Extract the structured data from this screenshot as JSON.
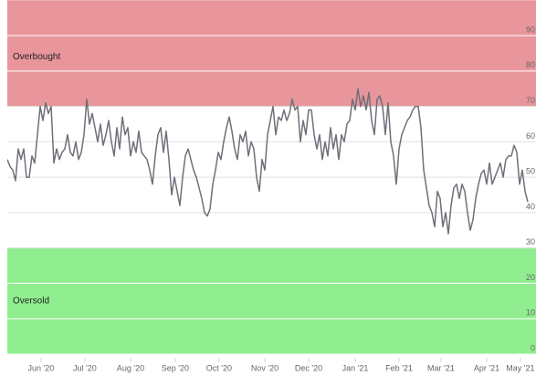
{
  "chart_data": {
    "type": "line",
    "series": [
      {
        "color": "#6e7079",
        "values": [
          55,
          53,
          52,
          49,
          58,
          55,
          58,
          50,
          50,
          56,
          54,
          62,
          70,
          66,
          71,
          68,
          70,
          54,
          58,
          55,
          57,
          58,
          62,
          57,
          56,
          60,
          55,
          57,
          62,
          72,
          65,
          68,
          64,
          60,
          65,
          59,
          62,
          66,
          60,
          56,
          64,
          58,
          67,
          62,
          64,
          56,
          60,
          57,
          63,
          57,
          56,
          55,
          52,
          48,
          56,
          62,
          64,
          57,
          63,
          55,
          45,
          50,
          46,
          42,
          50,
          56,
          58,
          55,
          52,
          50,
          47,
          44,
          40,
          39,
          41,
          48,
          52,
          57,
          55,
          60,
          64,
          67,
          63,
          58,
          55,
          62,
          60,
          63,
          56,
          60,
          58,
          50,
          46,
          55,
          52,
          62,
          66,
          70,
          62,
          67,
          66,
          69,
          66,
          68,
          72,
          69,
          70,
          60,
          66,
          62,
          69,
          69,
          62,
          58,
          62,
          55,
          60,
          56,
          64,
          58,
          62,
          55,
          62,
          60,
          65,
          66,
          72,
          69,
          75,
          70,
          73,
          69,
          74,
          66,
          62,
          72,
          73,
          70,
          62,
          71,
          60,
          56,
          48,
          58,
          62,
          64,
          66,
          67,
          69,
          70,
          70,
          64,
          52,
          47,
          42,
          40,
          36,
          46,
          44,
          36,
          40,
          34,
          42,
          47,
          48,
          44,
          48,
          46,
          40,
          35,
          38,
          44,
          48,
          51,
          52,
          48,
          54,
          48,
          50,
          52,
          54,
          50,
          55,
          56,
          56,
          59,
          57,
          48,
          52,
          46,
          43
        ]
      }
    ],
    "xlim": [
      0,
      193
    ],
    "xticks": [
      {
        "value": 12.3,
        "label": "Jun '20"
      },
      {
        "value": 28.3,
        "label": "Jul '20"
      },
      {
        "value": 45,
        "label": "Aug '20"
      },
      {
        "value": 61.3,
        "label": "Sep '20"
      },
      {
        "value": 77.3,
        "label": "Oct '20"
      },
      {
        "value": 94,
        "label": "Nov '20"
      },
      {
        "value": 110,
        "label": "Dec '20"
      },
      {
        "value": 127,
        "label": "Jan '21"
      },
      {
        "value": 143,
        "label": "Feb '21"
      },
      {
        "value": 158.3,
        "label": "Mar '21"
      },
      {
        "value": 175,
        "label": "Apr '21"
      },
      {
        "value": 187.3,
        "label": "May '21"
      }
    ],
    "ylim": [
      -1,
      98
    ],
    "yticks": [
      0,
      10,
      20,
      30,
      40,
      50,
      60,
      70,
      80,
      90
    ],
    "grid": true,
    "bands": [
      {
        "label": "Overbought",
        "from": 70,
        "to": 100,
        "color": "#e8969b"
      },
      {
        "label": "Oversold",
        "from": 0,
        "to": 30,
        "color": "#90ee90"
      }
    ]
  }
}
